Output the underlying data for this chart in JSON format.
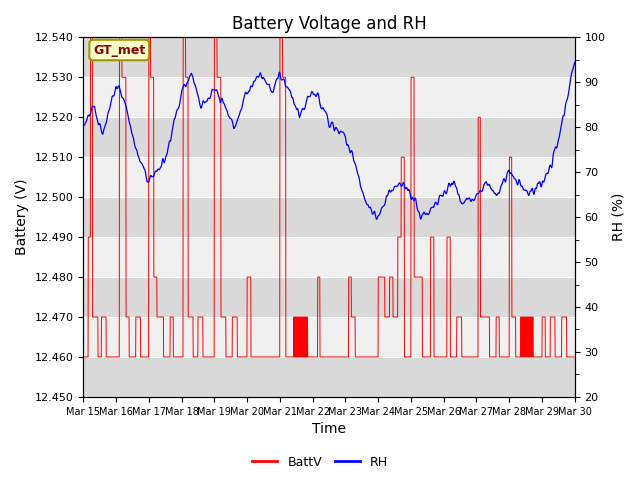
{
  "title": "Battery Voltage and RH",
  "xlabel": "Time",
  "ylabel_left": "Battery (V)",
  "ylabel_right": "RH (%)",
  "annotation": "GT_met",
  "legend_labels": [
    "BattV",
    "RH"
  ],
  "legend_colors": [
    "red",
    "blue"
  ],
  "batt_ylim": [
    12.45,
    12.54
  ],
  "rh_ylim": [
    20,
    100
  ],
  "batt_yticks": [
    12.45,
    12.46,
    12.47,
    12.48,
    12.49,
    12.5,
    12.51,
    12.52,
    12.53,
    12.54
  ],
  "rh_yticks": [
    20,
    30,
    40,
    50,
    60,
    70,
    80,
    90,
    100
  ],
  "xtick_labels": [
    "Mar 15",
    "Mar 16",
    "Mar 17",
    "Mar 18",
    "Mar 19",
    "Mar 20",
    "Mar 21",
    "Mar 22",
    "Mar 23",
    "Mar 24",
    "Mar 25",
    "Mar 26",
    "Mar 27",
    "Mar 28",
    "Mar 29",
    "Mar 30"
  ],
  "band_colors": [
    "#d9d9d9",
    "#f0f0f0"
  ],
  "title_fontsize": 12,
  "axis_label_fontsize": 10,
  "tick_fontsize": 8,
  "annotation_fontsize": 9
}
